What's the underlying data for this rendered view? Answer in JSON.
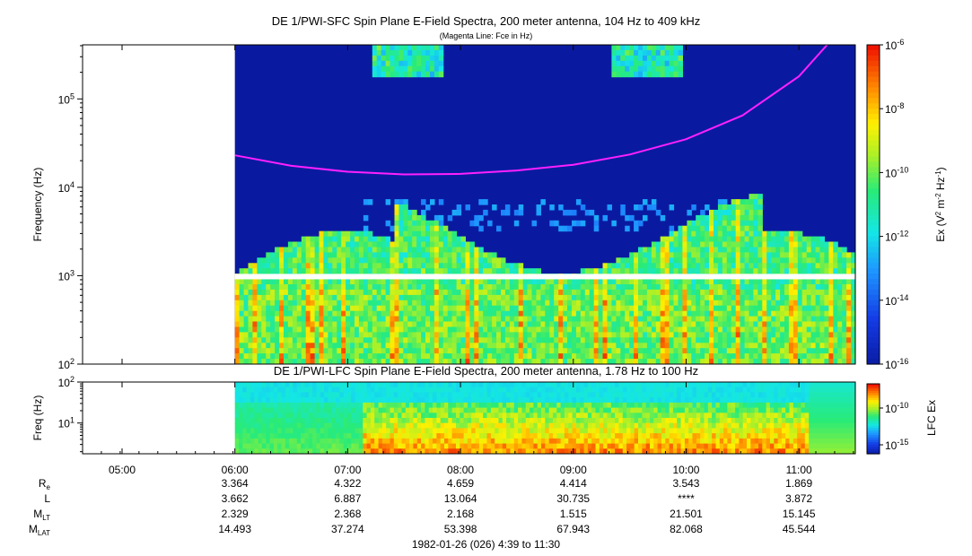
{
  "title_top": "DE 1/PWI-SFC  Spin Plane E-Field Spectra, 200 meter antenna, 104 Hz to 409 kHz",
  "subtitle_top": "(Magenta Line: Fce in Hz)",
  "title_bottom": "DE 1/PWI-LFC  Spin Plane E-Field Spectra, 200 meter antenna, 1.78 Hz to 100 Hz",
  "footer": "1982-01-26 (026) 4:39 to 11:30",
  "colors": {
    "magenta_line": "#ff20ff",
    "background_low": "#0a1aa0",
    "gap": "#ffffff"
  },
  "chart_data": [
    {
      "type": "heatmap",
      "name": "sfc",
      "title": "DE 1/PWI-SFC  Spin Plane E-Field Spectra, 200 meter antenna, 104 Hz to 409 kHz",
      "ylabel": "Frequency (Hz)",
      "yscale": "log",
      "ylim": [
        100,
        409000
      ],
      "xlim": [
        "04:39",
        "11:30"
      ],
      "data_start": "06:00",
      "y_ticks": [
        "10^2",
        "10^3",
        "10^4",
        "10^5"
      ],
      "colorbar": {
        "label": "Ex (V^2 m^-2 Hz^-1)",
        "range": [
          1e-16,
          1e-06
        ],
        "ticks": [
          "10^-6",
          "10^-8",
          "10^-10",
          "10^-12",
          "10^-14",
          "10^-16"
        ],
        "scale": "log"
      },
      "fce_line": {
        "name": "Fce in Hz",
        "color": "#ff20ff",
        "x": [
          "06:00",
          "06:30",
          "07:00",
          "07:30",
          "08:00",
          "08:30",
          "09:00",
          "09:30",
          "10:00",
          "10:30",
          "11:00",
          "11:15"
        ],
        "y": [
          23000,
          17500,
          15000,
          14000,
          14200,
          15500,
          18000,
          23500,
          35000,
          65000,
          180000,
          409000
        ]
      }
    },
    {
      "type": "heatmap",
      "name": "lfc",
      "title": "DE 1/PWI-LFC  Spin Plane E-Field Spectra, 200 meter antenna, 1.78 Hz to 100 Hz",
      "ylabel": "Freq (Hz)",
      "yscale": "log",
      "ylim": [
        1.78,
        100
      ],
      "xlim": [
        "04:39",
        "11:30"
      ],
      "data_start": "06:00",
      "y_ticks": [
        "10^1",
        "10^2"
      ],
      "colorbar": {
        "label": "LFC Ex",
        "ticks": [
          "10^-10",
          "10^-15"
        ],
        "scale": "log"
      }
    }
  ],
  "x_axis": {
    "ticks": [
      "05:00",
      "06:00",
      "07:00",
      "08:00",
      "09:00",
      "10:00",
      "11:00"
    ]
  },
  "ephemeris": {
    "labels": [
      "R_e",
      "L",
      "M_LT",
      "M_LAT"
    ],
    "columns": [
      "06:00",
      "07:00",
      "08:00",
      "09:00",
      "10:00",
      "11:00"
    ],
    "rows": [
      [
        "3.364",
        "4.322",
        "4.659",
        "4.414",
        "3.543",
        "1.869"
      ],
      [
        "3.662",
        "6.887",
        "13.064",
        "30.735",
        "****",
        "3.872"
      ],
      [
        "2.329",
        "2.368",
        "2.168",
        "1.515",
        "21.501",
        "15.145"
      ],
      [
        "14.493",
        "37.274",
        "53.398",
        "67.943",
        "82.068",
        "45.544"
      ]
    ]
  }
}
